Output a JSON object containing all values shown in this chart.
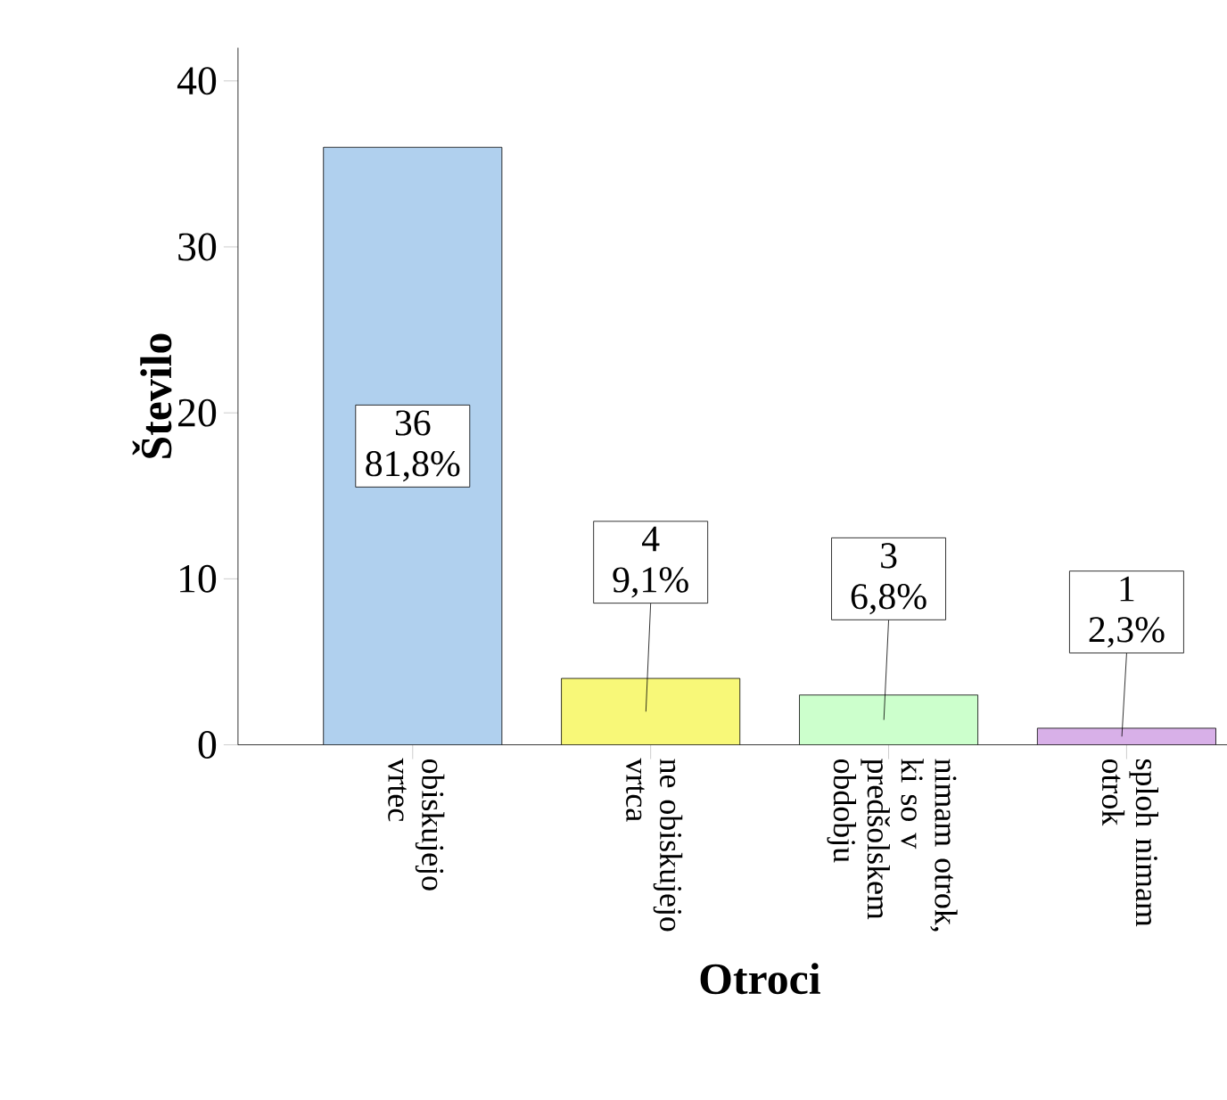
{
  "chart_data": {
    "type": "bar",
    "xlabel": "Otroci",
    "ylabel": "Število",
    "categories": [
      "obiskujejo vrtec",
      "ne obiskujejo vrtca",
      "nimam otrok, ki so v predšolskem obdobju",
      "sploh nimam otrok"
    ],
    "values": [
      36,
      4,
      3,
      1
    ],
    "colors": [
      "#b0d0ee",
      "#f8f878",
      "#ccffcc",
      "#d8b0e8"
    ],
    "value_labels": [
      "36 81,8%",
      "4 9,1%",
      "3 6,8%",
      "1 2,3%"
    ],
    "ylim": [
      0,
      42
    ],
    "yticks": [
      0,
      10,
      20,
      30,
      40
    ]
  }
}
